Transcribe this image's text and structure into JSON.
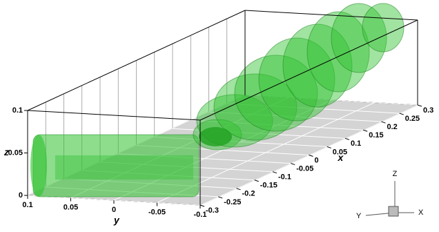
{
  "chart_data": {
    "type": "isosurface3d",
    "xlabel": "x",
    "ylabel": "y",
    "zlabel": "z",
    "xlim": [
      -0.3,
      0.3
    ],
    "xticks": [
      -0.3,
      -0.25,
      -0.2,
      -0.15,
      -0.1,
      -0.05,
      0,
      0.05,
      0.1,
      0.15,
      0.2,
      0.25,
      0.3
    ],
    "ylim": [
      0.1,
      -0.1
    ],
    "yticks": [
      0.1,
      0.05,
      0,
      -0.05,
      -0.1
    ],
    "zlim": [
      0,
      0.1
    ],
    "zticks": [
      0,
      0.05,
      0.1
    ],
    "color": "#2fc12f",
    "floor_color": "#d4d4d4",
    "grid": true,
    "triad": {
      "z": "Z",
      "y": "Y",
      "x": "X"
    }
  }
}
